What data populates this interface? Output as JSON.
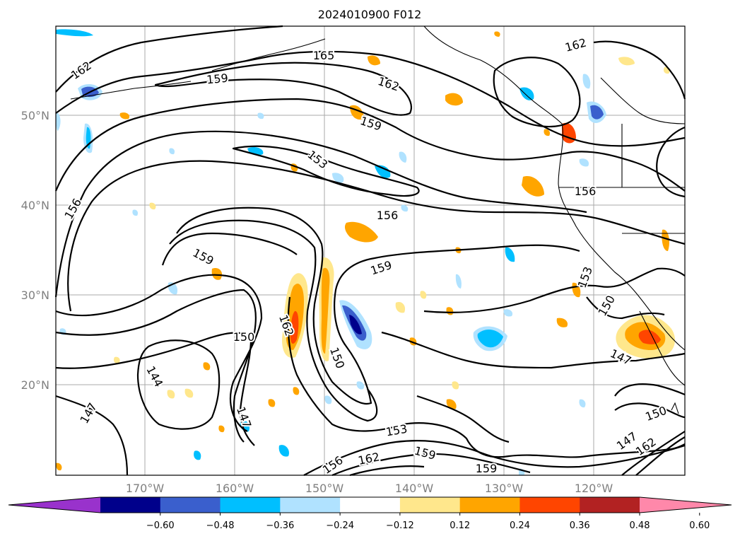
{
  "map": {
    "title": "2024010900 F012",
    "lat_labels": [
      "50°N",
      "40°N",
      "30°N",
      "20°N"
    ],
    "lon_labels": [
      "170°W",
      "160°W",
      "150°W",
      "140°W",
      "130°W",
      "120°W"
    ],
    "contour_labels": [
      "165",
      "162",
      "159",
      "156",
      "153",
      "150",
      "147",
      "144",
      "162",
      "159",
      "162",
      "156",
      "159",
      "153",
      "156",
      "159",
      "150",
      "147",
      "150",
      "147",
      "162",
      "153",
      "159",
      "162",
      "156"
    ],
    "contour_label_list_note": "",
    "colorbar": {
      "tick_labels": [
        "−0.60",
        "−0.48",
        "−0.36",
        "−0.24",
        "−0.12",
        "0.12",
        "0.24",
        "0.36",
        "0.48",
        "0.60"
      ],
      "colors": [
        "#9932cc",
        "#00008b",
        "#3a5fcd",
        "#00bfff",
        "#b0e2ff",
        "#ffffff",
        "#ffe78c",
        "#ffa500",
        "#ff4500",
        "#b22222",
        "#ff88aa"
      ]
    }
  }
}
